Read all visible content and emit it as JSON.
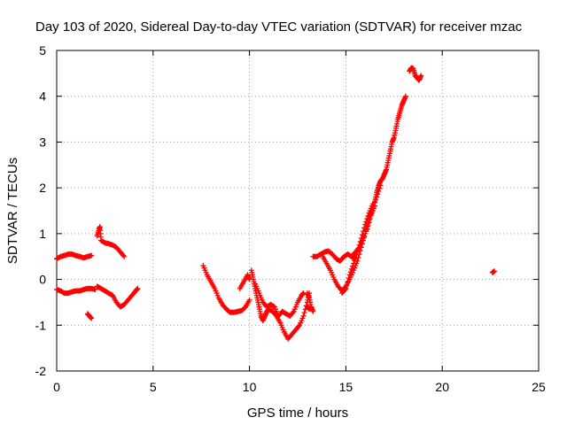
{
  "chart_data": {
    "type": "scatter",
    "title": "Day 103 of 2020, Sidereal Day-to-day VTEC variation (SDTVAR) for receiver mzac",
    "xlabel": "GPS time / hours",
    "ylabel": "SDTVAR / TECUs",
    "xlim": [
      0,
      25
    ],
    "ylim": [
      -2,
      5
    ],
    "xticks": [
      "0",
      "5",
      "10",
      "15",
      "20",
      "25"
    ],
    "yticks": [
      "-2",
      "-1",
      "0",
      "1",
      "2",
      "3",
      "4",
      "5"
    ],
    "grid": true,
    "marker": "plus",
    "color": "#ff0000",
    "segments": [
      [
        [
          0.0,
          0.45
        ],
        [
          0.2,
          0.5
        ],
        [
          0.4,
          0.52
        ],
        [
          0.6,
          0.55
        ],
        [
          0.8,
          0.55
        ],
        [
          1.0,
          0.52
        ],
        [
          1.2,
          0.5
        ],
        [
          1.4,
          0.47
        ],
        [
          1.6,
          0.5
        ],
        [
          1.8,
          0.52
        ]
      ],
      [
        [
          0.0,
          -0.22
        ],
        [
          0.2,
          -0.25
        ],
        [
          0.4,
          -0.3
        ],
        [
          0.6,
          -0.3
        ],
        [
          0.8,
          -0.27
        ],
        [
          1.0,
          -0.25
        ],
        [
          1.2,
          -0.25
        ],
        [
          1.4,
          -0.22
        ],
        [
          1.6,
          -0.2
        ],
        [
          1.8,
          -0.2
        ],
        [
          2.0,
          -0.22
        ]
      ],
      [
        [
          1.6,
          -0.75
        ],
        [
          1.7,
          -0.8
        ],
        [
          1.8,
          -0.85
        ]
      ],
      [
        [
          2.1,
          0.95
        ],
        [
          2.2,
          1.1
        ],
        [
          2.25,
          1.15
        ],
        [
          2.3,
          0.85
        ],
        [
          2.5,
          0.8
        ],
        [
          2.7,
          0.78
        ],
        [
          2.9,
          0.75
        ],
        [
          3.1,
          0.7
        ],
        [
          3.3,
          0.6
        ],
        [
          3.5,
          0.5
        ]
      ],
      [
        [
          2.1,
          -0.15
        ],
        [
          2.3,
          -0.2
        ],
        [
          2.5,
          -0.25
        ],
        [
          2.7,
          -0.3
        ],
        [
          2.9,
          -0.35
        ],
        [
          3.1,
          -0.5
        ],
        [
          3.3,
          -0.6
        ],
        [
          3.5,
          -0.55
        ],
        [
          3.7,
          -0.45
        ],
        [
          3.9,
          -0.35
        ],
        [
          4.1,
          -0.25
        ],
        [
          4.2,
          -0.2
        ]
      ],
      [
        [
          7.6,
          0.3
        ],
        [
          7.8,
          0.1
        ],
        [
          8.0,
          -0.05
        ],
        [
          8.2,
          -0.2
        ],
        [
          8.4,
          -0.4
        ],
        [
          8.6,
          -0.55
        ],
        [
          8.8,
          -0.65
        ],
        [
          9.0,
          -0.72
        ],
        [
          9.2,
          -0.72
        ],
        [
          9.4,
          -0.7
        ],
        [
          9.6,
          -0.68
        ],
        [
          9.8,
          -0.6
        ],
        [
          10.0,
          -0.45
        ]
      ],
      [
        [
          9.5,
          -0.2
        ],
        [
          9.7,
          -0.05
        ],
        [
          9.9,
          0.1
        ],
        [
          10.0,
          0.0
        ]
      ],
      [
        [
          10.1,
          0.2
        ],
        [
          10.2,
          0.0
        ],
        [
          10.3,
          -0.2
        ],
        [
          10.4,
          -0.4
        ],
        [
          10.5,
          -0.6
        ],
        [
          10.6,
          -0.8
        ],
        [
          10.7,
          -0.9
        ],
        [
          10.8,
          -0.8
        ],
        [
          10.9,
          -0.7
        ],
        [
          11.0,
          -0.65
        ],
        [
          11.2,
          -0.7
        ],
        [
          11.4,
          -0.8
        ],
        [
          11.6,
          -0.95
        ],
        [
          11.8,
          -1.15
        ],
        [
          12.0,
          -1.3
        ],
        [
          12.2,
          -1.2
        ],
        [
          12.4,
          -1.1
        ],
        [
          12.6,
          -1.0
        ],
        [
          12.8,
          -0.8
        ],
        [
          13.0,
          -0.5
        ],
        [
          13.1,
          -0.3
        ]
      ],
      [
        [
          10.3,
          -0.1
        ],
        [
          10.5,
          -0.3
        ],
        [
          10.7,
          -0.5
        ],
        [
          10.9,
          -0.6
        ],
        [
          11.1,
          -0.55
        ],
        [
          11.3,
          -0.6
        ],
        [
          11.5,
          -0.8
        ],
        [
          11.7,
          -0.7
        ],
        [
          11.9,
          -0.75
        ],
        [
          12.1,
          -0.8
        ],
        [
          12.3,
          -0.7
        ],
        [
          12.5,
          -0.5
        ],
        [
          12.7,
          -0.35
        ],
        [
          12.8,
          -0.3
        ]
      ],
      [
        [
          13.0,
          -0.3
        ],
        [
          13.1,
          -0.4
        ],
        [
          13.2,
          -0.6
        ],
        [
          13.3,
          -0.7
        ]
      ],
      [
        [
          13.0,
          -0.6
        ],
        [
          13.1,
          -0.65
        ],
        [
          13.2,
          -0.6
        ]
      ],
      [
        [
          13.3,
          0.5
        ],
        [
          13.5,
          0.5
        ],
        [
          13.7,
          0.55
        ],
        [
          13.9,
          0.6
        ],
        [
          14.1,
          0.62
        ],
        [
          14.3,
          0.55
        ],
        [
          14.5,
          0.45
        ],
        [
          14.7,
          0.4
        ],
        [
          14.9,
          0.5
        ],
        [
          15.1,
          0.55
        ],
        [
          15.3,
          0.5
        ],
        [
          15.5,
          0.45
        ]
      ],
      [
        [
          13.8,
          0.5
        ],
        [
          14.0,
          0.35
        ],
        [
          14.2,
          0.2
        ],
        [
          14.4,
          0.0
        ],
        [
          14.6,
          -0.15
        ],
        [
          14.8,
          -0.25
        ],
        [
          15.0,
          -0.15
        ],
        [
          15.2,
          0.0
        ],
        [
          15.4,
          0.2
        ],
        [
          15.6,
          0.4
        ],
        [
          15.8,
          0.7
        ],
        [
          16.0,
          1.0
        ],
        [
          16.2,
          1.3
        ],
        [
          16.4,
          1.55
        ],
        [
          16.6,
          1.8
        ],
        [
          16.8,
          2.05
        ]
      ],
      [
        [
          14.8,
          -0.3
        ],
        [
          15.0,
          -0.2
        ],
        [
          15.2,
          0.1
        ],
        [
          15.4,
          0.35
        ],
        [
          15.6,
          0.6
        ],
        [
          15.8,
          0.9
        ],
        [
          16.0,
          1.2
        ],
        [
          16.2,
          1.45
        ],
        [
          16.4,
          1.65
        ]
      ],
      [
        [
          15.3,
          0.5
        ],
        [
          15.5,
          0.6
        ],
        [
          15.7,
          0.7
        ],
        [
          15.9,
          0.9
        ],
        [
          16.1,
          1.1
        ],
        [
          16.3,
          1.4
        ],
        [
          16.5,
          1.6
        ]
      ],
      [
        [
          16.5,
          1.7
        ],
        [
          16.6,
          1.9
        ],
        [
          16.7,
          2.05
        ],
        [
          16.8,
          2.15
        ],
        [
          16.9,
          2.2
        ],
        [
          17.0,
          2.3
        ],
        [
          17.1,
          2.4
        ],
        [
          17.2,
          2.6
        ],
        [
          17.3,
          2.8
        ],
        [
          17.4,
          3.0
        ],
        [
          17.5,
          3.1
        ],
        [
          17.6,
          3.3
        ],
        [
          17.7,
          3.5
        ],
        [
          17.8,
          3.65
        ],
        [
          17.9,
          3.8
        ],
        [
          18.0,
          3.9
        ],
        [
          18.1,
          4.0
        ]
      ],
      [
        [
          18.3,
          4.55
        ],
        [
          18.4,
          4.62
        ],
        [
          18.5,
          4.6
        ],
        [
          18.6,
          4.45
        ],
        [
          18.7,
          4.4
        ],
        [
          18.8,
          4.35
        ],
        [
          18.9,
          4.45
        ]
      ],
      [
        [
          22.6,
          0.15
        ],
        [
          22.7,
          0.18
        ]
      ]
    ]
  }
}
